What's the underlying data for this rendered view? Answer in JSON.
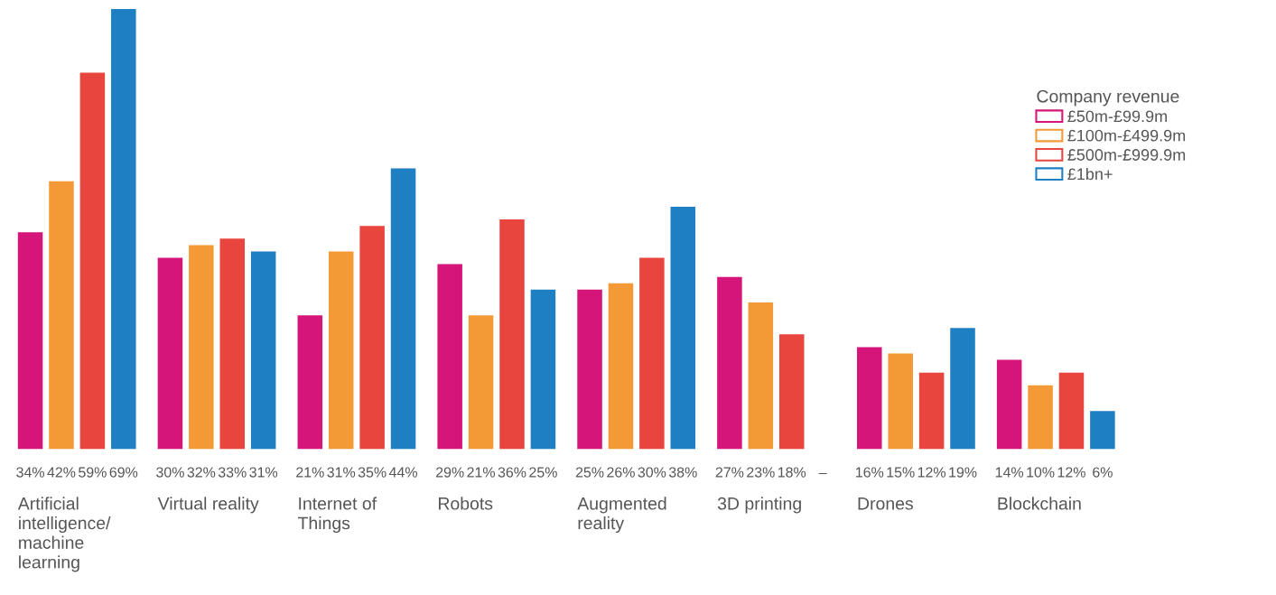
{
  "chart_data": {
    "type": "bar",
    "legend_title": "Company revenue",
    "legend": "top right",
    "categories": [
      "Artificial\nintelligence/\nmachine\nlearning",
      "Virtual reality",
      "Internet of\nThings",
      "Robots",
      "Augmented\nreality",
      "3D printing",
      "Drones",
      "Blockchain"
    ],
    "series": [
      {
        "name": "£50m-£99.9m",
        "color": "#d6157a",
        "values": [
          34,
          30,
          21,
          29,
          25,
          27,
          16,
          14
        ],
        "value_labels": [
          "34%",
          "30%",
          "21%",
          "29%",
          "25%",
          "27%",
          "16%",
          "14%"
        ]
      },
      {
        "name": "£100m-£499.9m",
        "color": "#f39a37",
        "values": [
          42,
          32,
          31,
          21,
          26,
          23,
          15,
          10
        ],
        "value_labels": [
          "42%",
          "32%",
          "31%",
          "21%",
          "26%",
          "23%",
          "15%",
          "10%"
        ]
      },
      {
        "name": "£500m-£999.9m",
        "color": "#e8453f",
        "values": [
          59,
          33,
          35,
          36,
          30,
          18,
          12,
          12
        ],
        "value_labels": [
          "59%",
          "33%",
          "35%",
          "36%",
          "30%",
          "18%",
          "12%",
          "12%"
        ]
      },
      {
        "name": "£1bn+",
        "color": "#1f7fc3",
        "values": [
          69,
          31,
          44,
          25,
          38,
          null,
          19,
          6
        ],
        "value_labels": [
          "69%",
          "31%",
          "44%",
          "25%",
          "38%",
          "–",
          "19%",
          "6%"
        ]
      }
    ]
  }
}
